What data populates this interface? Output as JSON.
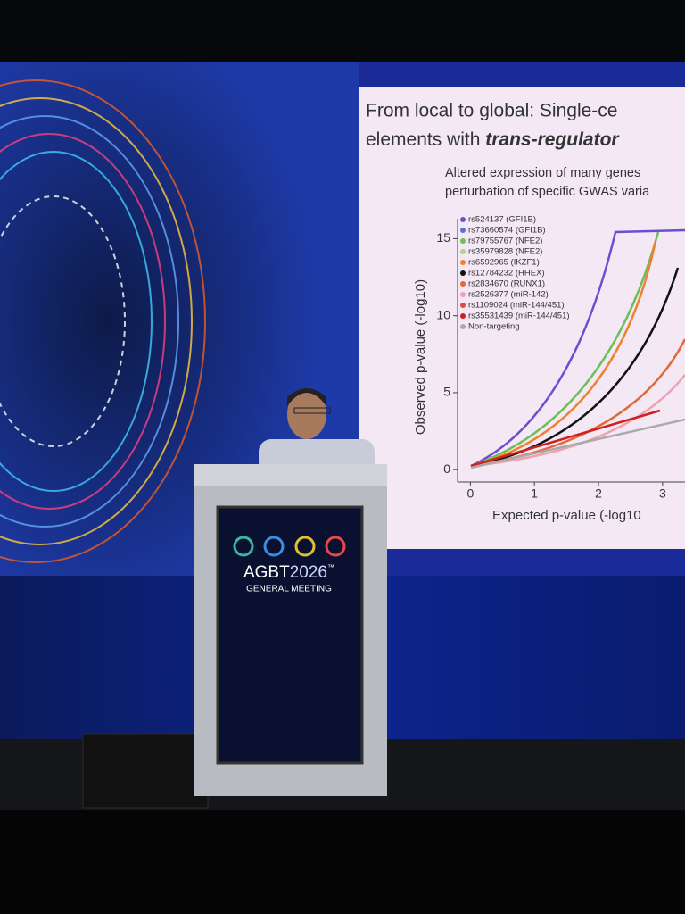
{
  "slide": {
    "title": [
      "From local to global: Single-ce",
      "elements with ",
      "trans-regulator"
    ],
    "subtitle": [
      "Altered expression of many genes",
      "perturbation of specific GWAS varia"
    ],
    "plot": {
      "ylabel": "Observed p-value (-log10)",
      "xlabel": "Expected p-value (-log10",
      "xlim": [
        -0.2,
        3.35
      ],
      "ylim": [
        -0.8,
        16.3
      ],
      "xticks": [
        0,
        1,
        2,
        3
      ],
      "yticks": [
        0,
        5,
        10,
        15
      ],
      "series": [
        {
          "name": "rs524137 (GFI1B)",
          "color": "#6a4fd0"
        },
        {
          "name": "rs73660574 (GFI1B)",
          "color": "#5a6fd8"
        },
        {
          "name": "rs79755767 (NFE2)",
          "color": "#6cbf5a"
        },
        {
          "name": "rs35979828 (NFE2)",
          "color": "#a8d890"
        },
        {
          "name": "rs6592965 (IKZF1)",
          "color": "#f08030"
        },
        {
          "name": "rs12784232 (HHEX)",
          "color": "#111111"
        },
        {
          "name": "rs2834670 (RUNX1)",
          "color": "#e06a3a"
        },
        {
          "name": "rs2526377 (miR-142)",
          "color": "#f0a0b0"
        },
        {
          "name": "rs1109024 (miR-144/451)",
          "color": "#e04848"
        },
        {
          "name": "rs35531439 (miR-144/451)",
          "color": "#d02020"
        },
        {
          "name": "Non-targeting",
          "color": "#aaaaaa"
        }
      ]
    }
  },
  "podium": {
    "name": "AGBT",
    "year": "2026",
    "mark": "™",
    "subtitle": "GENERAL MEETING"
  }
}
